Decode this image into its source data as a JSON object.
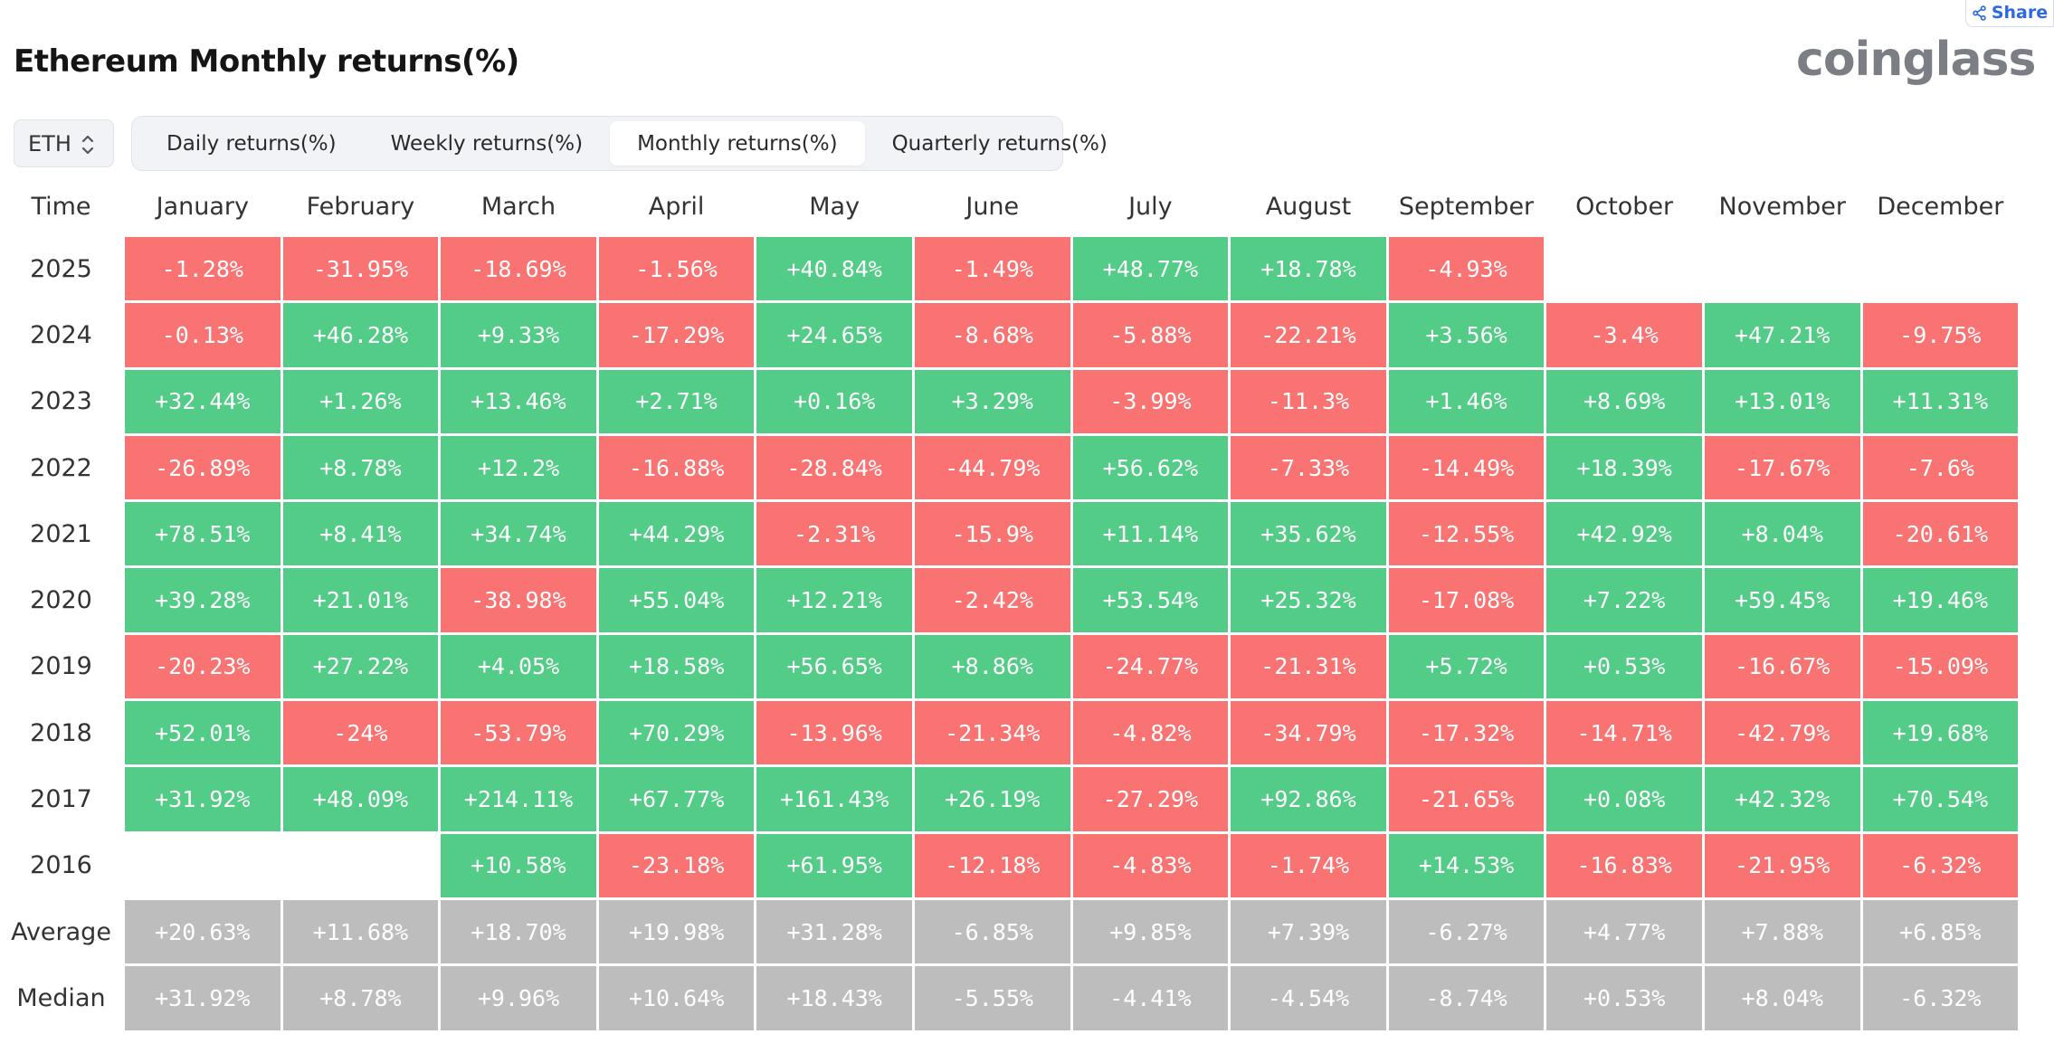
{
  "share_label": "Share",
  "title": "Ethereum Monthly returns(%)",
  "brand": "coinglass",
  "coin_select": {
    "value": "ETH"
  },
  "tabs": [
    {
      "label": "Daily returns(%)",
      "active": false
    },
    {
      "label": "Weekly returns(%)",
      "active": false
    },
    {
      "label": "Monthly returns(%)",
      "active": true
    },
    {
      "label": "Quarterly returns(%)",
      "active": false
    }
  ],
  "colors": {
    "positive": "#52cc87",
    "negative": "#f97373",
    "stat": "#bdbdbd"
  },
  "table": {
    "time_header": "Time",
    "months": [
      "January",
      "February",
      "March",
      "April",
      "May",
      "June",
      "July",
      "August",
      "September",
      "October",
      "November",
      "December"
    ],
    "rows": [
      {
        "label": "2025",
        "values": [
          "-1.28%",
          "-31.95%",
          "-18.69%",
          "-1.56%",
          "+40.84%",
          "-1.49%",
          "+48.77%",
          "+18.78%",
          "-4.93%",
          "",
          "",
          ""
        ]
      },
      {
        "label": "2024",
        "values": [
          "-0.13%",
          "+46.28%",
          "+9.33%",
          "-17.29%",
          "+24.65%",
          "-8.68%",
          "-5.88%",
          "-22.21%",
          "+3.56%",
          "-3.4%",
          "+47.21%",
          "-9.75%"
        ]
      },
      {
        "label": "2023",
        "values": [
          "+32.44%",
          "+1.26%",
          "+13.46%",
          "+2.71%",
          "+0.16%",
          "+3.29%",
          "-3.99%",
          "-11.3%",
          "+1.46%",
          "+8.69%",
          "+13.01%",
          "+11.31%"
        ]
      },
      {
        "label": "2022",
        "values": [
          "-26.89%",
          "+8.78%",
          "+12.2%",
          "-16.88%",
          "-28.84%",
          "-44.79%",
          "+56.62%",
          "-7.33%",
          "-14.49%",
          "+18.39%",
          "-17.67%",
          "-7.6%"
        ]
      },
      {
        "label": "2021",
        "values": [
          "+78.51%",
          "+8.41%",
          "+34.74%",
          "+44.29%",
          "-2.31%",
          "-15.9%",
          "+11.14%",
          "+35.62%",
          "-12.55%",
          "+42.92%",
          "+8.04%",
          "-20.61%"
        ]
      },
      {
        "label": "2020",
        "values": [
          "+39.28%",
          "+21.01%",
          "-38.98%",
          "+55.04%",
          "+12.21%",
          "-2.42%",
          "+53.54%",
          "+25.32%",
          "-17.08%",
          "+7.22%",
          "+59.45%",
          "+19.46%"
        ]
      },
      {
        "label": "2019",
        "values": [
          "-20.23%",
          "+27.22%",
          "+4.05%",
          "+18.58%",
          "+56.65%",
          "+8.86%",
          "-24.77%",
          "-21.31%",
          "+5.72%",
          "+0.53%",
          "-16.67%",
          "-15.09%"
        ]
      },
      {
        "label": "2018",
        "values": [
          "+52.01%",
          "-24%",
          "-53.79%",
          "+70.29%",
          "-13.96%",
          "-21.34%",
          "-4.82%",
          "-34.79%",
          "-17.32%",
          "-14.71%",
          "-42.79%",
          "+19.68%"
        ]
      },
      {
        "label": "2017",
        "values": [
          "+31.92%",
          "+48.09%",
          "+214.11%",
          "+67.77%",
          "+161.43%",
          "+26.19%",
          "-27.29%",
          "+92.86%",
          "-21.65%",
          "+0.08%",
          "+42.32%",
          "+70.54%"
        ]
      },
      {
        "label": "2016",
        "values": [
          "",
          "",
          "+10.58%",
          "-23.18%",
          "+61.95%",
          "-12.18%",
          "-4.83%",
          "-1.74%",
          "+14.53%",
          "-16.83%",
          "-21.95%",
          "-6.32%"
        ]
      }
    ],
    "stats": [
      {
        "label": "Average",
        "values": [
          "+20.63%",
          "+11.68%",
          "+18.70%",
          "+19.98%",
          "+31.28%",
          "-6.85%",
          "+9.85%",
          "+7.39%",
          "-6.27%",
          "+4.77%",
          "+7.88%",
          "+6.85%"
        ]
      },
      {
        "label": "Median",
        "values": [
          "+31.92%",
          "+8.78%",
          "+9.96%",
          "+10.64%",
          "+18.43%",
          "-5.55%",
          "-4.41%",
          "-4.54%",
          "-8.74%",
          "+0.53%",
          "+8.04%",
          "-6.32%"
        ]
      }
    ]
  }
}
